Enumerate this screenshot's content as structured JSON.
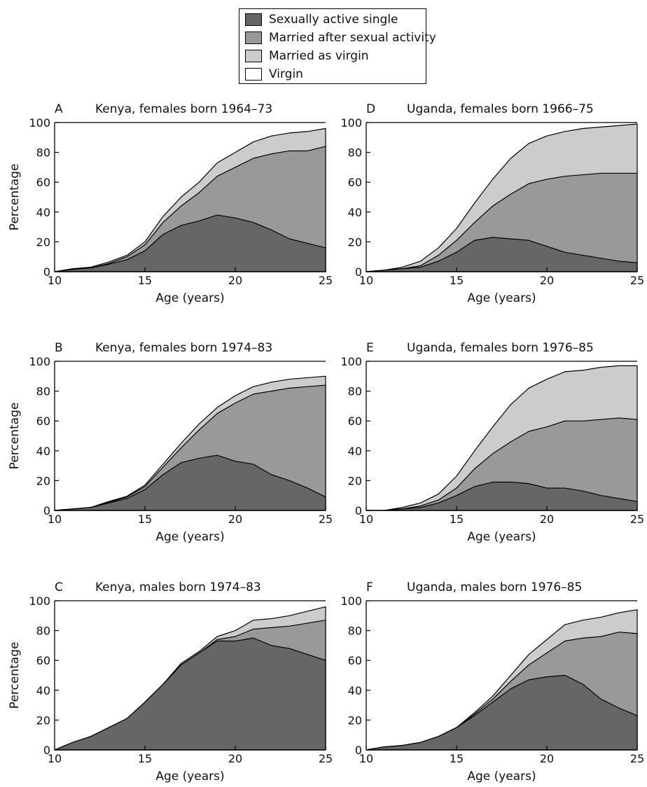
{
  "legend": {
    "items": [
      {
        "label": "Sexually active single",
        "color": "#666666"
      },
      {
        "label": "Married after sexual activity",
        "color": "#999999"
      },
      {
        "label": "Married as virgin",
        "color": "#cccccc"
      },
      {
        "label": "Virgin",
        "color": "#ffffff"
      }
    ]
  },
  "chart_data": [
    {
      "type": "area",
      "panel": "A",
      "title": "Kenya, females born 1964–73",
      "xlabel": "Age (years)",
      "ylabel": "Percentage",
      "xlim": [
        10,
        25
      ],
      "ylim": [
        0,
        100
      ],
      "xticks": [
        10,
        15,
        20,
        25
      ],
      "yticks": [
        0,
        20,
        40,
        60,
        80,
        100
      ],
      "stacked": true,
      "x": [
        10,
        11,
        12,
        13,
        14,
        15,
        16,
        17,
        18,
        19,
        20,
        21,
        22,
        23,
        24,
        25
      ],
      "series": [
        {
          "name": "Sexually active single",
          "values": [
            0,
            1.5,
            2.5,
            5,
            8,
            14,
            25,
            31,
            34,
            38,
            36,
            33,
            28,
            22,
            19,
            16
          ]
        },
        {
          "name": "Married after sexual activity",
          "values": [
            0,
            0,
            0,
            0.5,
            2,
            4,
            8,
            13,
            19,
            26,
            34,
            43,
            51,
            59,
            62,
            68
          ]
        },
        {
          "name": "Married as virgin",
          "values": [
            0,
            0.5,
            0.5,
            1,
            1,
            2,
            4,
            6,
            7,
            9,
            10,
            11,
            12,
            12,
            13,
            12
          ]
        }
      ]
    },
    {
      "type": "area",
      "panel": "D",
      "title": "Uganda, females born 1966–75",
      "xlabel": "Age (years)",
      "ylabel": "",
      "xlim": [
        10,
        25
      ],
      "ylim": [
        0,
        100
      ],
      "xticks": [
        10,
        15,
        20,
        25
      ],
      "yticks": [
        0,
        20,
        40,
        60,
        80,
        100
      ],
      "stacked": true,
      "x": [
        10,
        11,
        12,
        13,
        14,
        15,
        16,
        17,
        18,
        19,
        20,
        21,
        22,
        23,
        24,
        25
      ],
      "series": [
        {
          "name": "Sexually active single",
          "values": [
            0,
            1,
            2,
            3,
            7,
            13,
            21,
            23,
            22,
            21,
            17,
            13,
            11,
            9,
            7,
            6
          ]
        },
        {
          "name": "Married after sexual activity",
          "values": [
            0,
            0,
            0,
            1,
            4,
            8,
            12,
            21,
            30,
            38,
            45,
            51,
            54,
            57,
            59,
            60
          ]
        },
        {
          "name": "Married as virgin",
          "values": [
            0,
            0,
            1,
            3,
            5,
            8,
            13,
            18,
            24,
            27,
            29,
            30,
            31,
            31,
            32,
            33
          ]
        }
      ]
    },
    {
      "type": "area",
      "panel": "B",
      "title": "Kenya, females born 1974–83",
      "xlabel": "Age (years)",
      "ylabel": "Percentage",
      "xlim": [
        10,
        25
      ],
      "ylim": [
        0,
        100
      ],
      "xticks": [
        10,
        15,
        20,
        25
      ],
      "yticks": [
        0,
        20,
        40,
        60,
        80,
        100
      ],
      "stacked": true,
      "x": [
        10,
        11,
        12,
        13,
        14,
        15,
        16,
        17,
        18,
        19,
        20,
        21,
        22,
        23,
        24,
        25
      ],
      "series": [
        {
          "name": "Sexually active single",
          "values": [
            0,
            1,
            2,
            5,
            8,
            14,
            24,
            32,
            35,
            37,
            33,
            31,
            24,
            20,
            15,
            9
          ]
        },
        {
          "name": "Married after sexual activity",
          "values": [
            0,
            0,
            0,
            0.5,
            1,
            2,
            5,
            10,
            19,
            28,
            39,
            47,
            56,
            62,
            68,
            75
          ]
        },
        {
          "name": "Married as virgin",
          "values": [
            0,
            0,
            0,
            0.5,
            0.5,
            1,
            2,
            3,
            4,
            4,
            5,
            5,
            6,
            6,
            6,
            6
          ]
        }
      ]
    },
    {
      "type": "area",
      "panel": "E",
      "title": "Uganda, females born 1976–85",
      "xlabel": "Age (years)",
      "ylabel": "",
      "xlim": [
        10,
        25
      ],
      "ylim": [
        0,
        100
      ],
      "xticks": [
        10,
        15,
        20,
        25
      ],
      "yticks": [
        0,
        20,
        40,
        60,
        80,
        100
      ],
      "stacked": true,
      "x": [
        10,
        11,
        12,
        13,
        14,
        15,
        16,
        17,
        18,
        19,
        20,
        21,
        22,
        23,
        24,
        25
      ],
      "series": [
        {
          "name": "Sexually active single",
          "values": [
            0,
            0,
            1,
            2,
            5,
            10,
            16,
            19,
            19,
            18,
            15,
            15,
            13,
            10,
            8,
            6
          ]
        },
        {
          "name": "Married after sexual activity",
          "values": [
            0,
            0,
            0,
            1,
            2,
            5,
            12,
            19,
            27,
            35,
            41,
            45,
            47,
            51,
            54,
            55
          ]
        },
        {
          "name": "Married as virgin",
          "values": [
            0,
            0,
            1,
            2,
            4,
            8,
            12,
            18,
            25,
            29,
            32,
            33,
            34,
            35,
            35,
            36
          ]
        }
      ]
    },
    {
      "type": "area",
      "panel": "C",
      "title": "Kenya, males born 1974–83",
      "xlabel": "Age (years)",
      "ylabel": "Percentage",
      "xlim": [
        10,
        25
      ],
      "ylim": [
        0,
        100
      ],
      "xticks": [
        10,
        15,
        20,
        25
      ],
      "yticks": [
        0,
        20,
        40,
        60,
        80,
        100
      ],
      "stacked": true,
      "x": [
        10,
        11,
        12,
        13,
        14,
        15,
        16,
        17,
        18,
        19,
        20,
        21,
        22,
        23,
        24,
        25
      ],
      "series": [
        {
          "name": "Sexually active single",
          "values": [
            0,
            5,
            9,
            15,
            21,
            32,
            44,
            57,
            65,
            73,
            73,
            75,
            70,
            68,
            64,
            60
          ]
        },
        {
          "name": "Married after sexual activity",
          "values": [
            0,
            0,
            0,
            0,
            0,
            0,
            0,
            0,
            0,
            1,
            3,
            6,
            12,
            15,
            21,
            27
          ]
        },
        {
          "name": "Married as virgin",
          "values": [
            0,
            0,
            0,
            0,
            0,
            0,
            0,
            1,
            1,
            2,
            4,
            6,
            6,
            7,
            8,
            9
          ]
        }
      ]
    },
    {
      "type": "area",
      "panel": "F",
      "title": "Uganda, males born 1976–85",
      "xlabel": "Age (years)",
      "ylabel": "",
      "xlim": [
        10,
        25
      ],
      "ylim": [
        0,
        100
      ],
      "xticks": [
        10,
        15,
        20,
        25
      ],
      "yticks": [
        0,
        20,
        40,
        60,
        80,
        100
      ],
      "stacked": true,
      "x": [
        10,
        11,
        12,
        13,
        14,
        15,
        16,
        17,
        18,
        19,
        20,
        21,
        22,
        23,
        24,
        25
      ],
      "series": [
        {
          "name": "Sexually active single",
          "values": [
            0,
            2,
            3,
            5,
            9,
            15,
            23,
            32,
            41,
            47,
            49,
            50,
            44,
            34,
            28,
            23
          ]
        },
        {
          "name": "Married after sexual activity",
          "values": [
            0,
            0,
            0,
            0,
            0,
            0,
            1,
            2,
            5,
            10,
            16,
            23,
            31,
            42,
            51,
            55
          ]
        },
        {
          "name": "Married as virgin",
          "values": [
            0,
            0,
            0,
            0,
            0,
            0,
            1,
            2,
            4,
            7,
            9,
            11,
            12,
            13,
            13,
            16
          ]
        }
      ]
    }
  ]
}
